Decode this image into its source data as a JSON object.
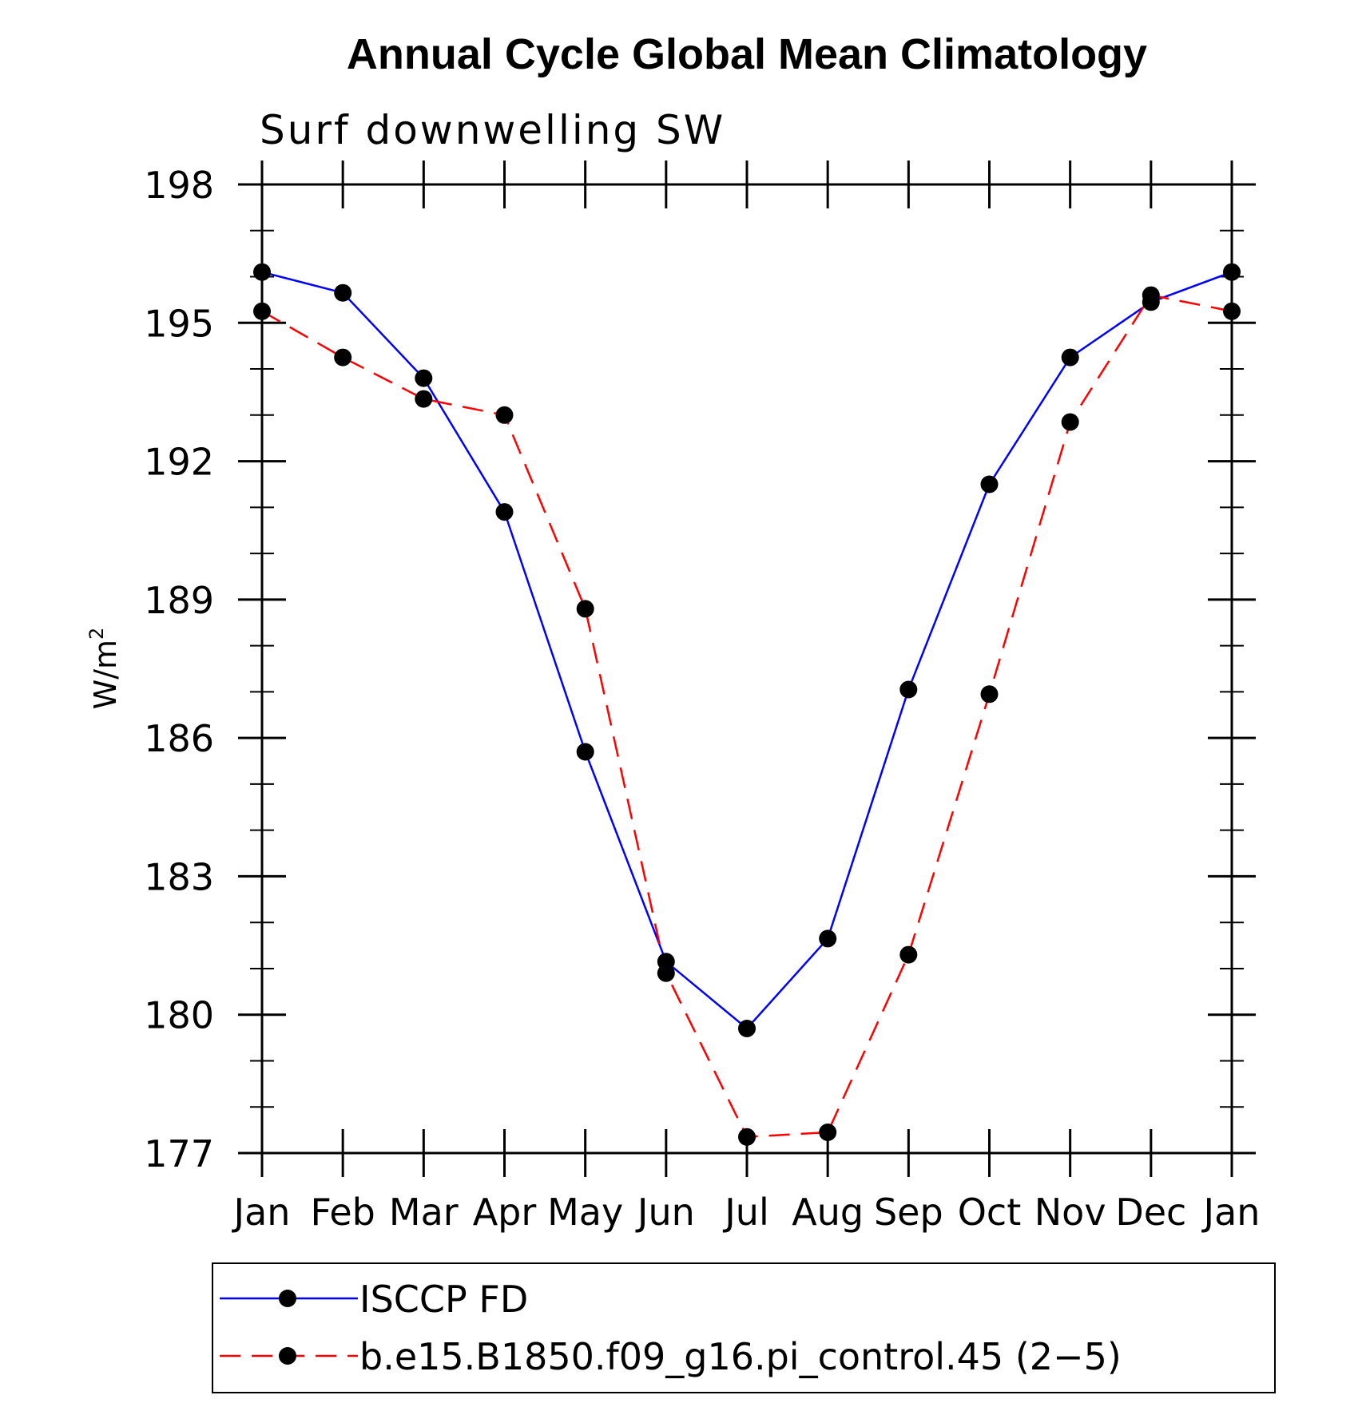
{
  "chart_data": {
    "type": "line",
    "title": "Annual Cycle Global Mean Climatology",
    "subtitle": "Surf downwelling SW",
    "ylabel": "W/m",
    "ylabel_sup": "2",
    "categories": [
      "Jan",
      "Feb",
      "Mar",
      "Apr",
      "May",
      "Jun",
      "Jul",
      "Aug",
      "Sep",
      "Oct",
      "Nov",
      "Dec",
      "Jan"
    ],
    "ylim": [
      177,
      198
    ],
    "yticks": [
      "177",
      "180",
      "183",
      "186",
      "189",
      "192",
      "195",
      "198"
    ],
    "series": [
      {
        "name": "ISCCP FD",
        "color": "#0000ff",
        "dash": "solid",
        "values": [
          196.1,
          195.65,
          193.8,
          190.9,
          185.7,
          181.15,
          179.7,
          181.65,
          187.05,
          191.5,
          194.25,
          195.45,
          196.1
        ]
      },
      {
        "name": "b.e15.B1850.f09_g16.pi_control.45 (2−5)",
        "color": "#ff0000",
        "dash": "dashed",
        "values": [
          195.25,
          194.25,
          193.35,
          193.0,
          188.8,
          180.9,
          177.35,
          177.45,
          181.3,
          186.95,
          192.85,
          195.6,
          195.25
        ]
      }
    ],
    "marker_color": "#000000",
    "legend_position": "bottom"
  }
}
